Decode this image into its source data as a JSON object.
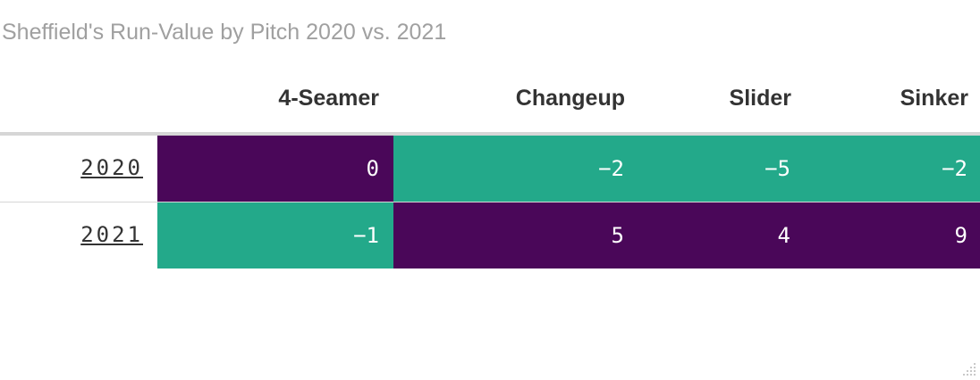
{
  "title": "Sheffield's Run-Value by Pitch 2020 vs. 2021",
  "colors": {
    "positive": "#4a0759",
    "negative": "#23a98a"
  },
  "chart_data": {
    "type": "heatmap",
    "title": "Sheffield's Run-Value by Pitch 2020 vs. 2021",
    "columns": [
      "4-Seamer",
      "Changeup",
      "Slider",
      "Sinker"
    ],
    "rows": [
      {
        "label": "2020",
        "values": [
          0,
          -2,
          -5,
          -2
        ],
        "display": [
          "0",
          "−2",
          "−5",
          "−2"
        ]
      },
      {
        "label": "2021",
        "values": [
          -1,
          5,
          4,
          9
        ],
        "display": [
          "−1",
          "5",
          "4",
          "9"
        ]
      }
    ]
  }
}
